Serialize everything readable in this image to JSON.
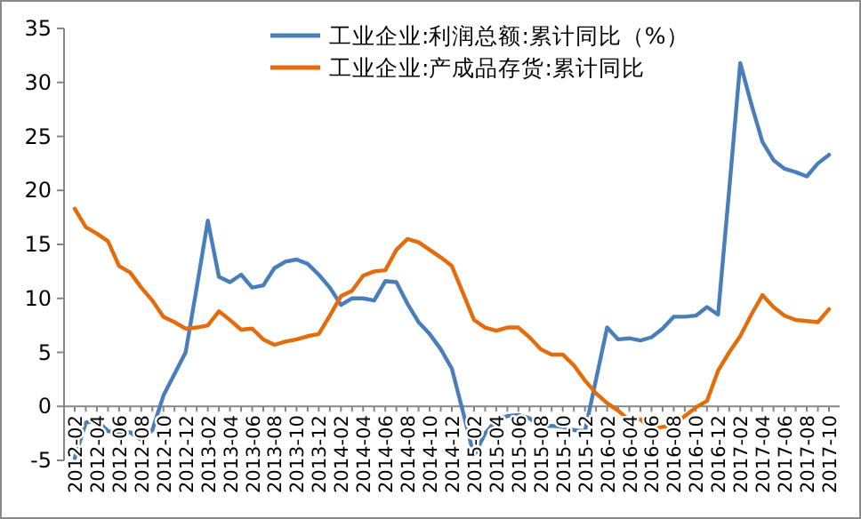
{
  "chart_data": {
    "type": "line",
    "categories": [
      "2012-02",
      null,
      "2012-04",
      null,
      "2012-06",
      null,
      "2012-08",
      null,
      "2012-10",
      null,
      "2012-12",
      null,
      "2013-02",
      null,
      "2013-04",
      null,
      "2013-06",
      null,
      "2013-08",
      null,
      "2013-10",
      null,
      "2013-12",
      null,
      "2014-02",
      null,
      "2014-04",
      null,
      "2014-06",
      null,
      "2014-08",
      null,
      "2014-10",
      null,
      "2014-12",
      null,
      "2015-02",
      null,
      "2015-04",
      null,
      "2015-06",
      null,
      "2015-08",
      null,
      "2015-10",
      null,
      "2015-12",
      null,
      "2016-02",
      null,
      "2016-04",
      null,
      "2016-06",
      null,
      "2016-08",
      null,
      "2016-10",
      null,
      "2016-12",
      null,
      "2017-02",
      null,
      "2017-04",
      null,
      "2017-06",
      null,
      "2017-08",
      null,
      "2017-10"
    ],
    "series": [
      {
        "name": "工业企业:利润总额:累计同比（%）",
        "color": "#4a7ebb",
        "values": [
          -4.8,
          -1.5,
          -1.3,
          -2.3,
          -2.5,
          -2.4,
          -3.1,
          -2.2,
          1,
          3,
          5,
          11,
          17.2,
          12,
          11.5,
          12.2,
          11,
          11.2,
          12.8,
          13.4,
          13.6,
          13.2,
          12.2,
          11,
          9.4,
          10,
          10,
          9.8,
          11.6,
          11.5,
          9.5,
          7.8,
          6.7,
          5.3,
          3.5,
          -0.5,
          -4.6,
          -2.5,
          -1.3,
          -0.9,
          -0.8,
          -1.1,
          -1.9,
          -1.8,
          -1.9,
          -2.2,
          -2.3,
          2.5,
          7.3,
          6.2,
          6.3,
          6.1,
          6.4,
          7.2,
          8.3,
          8.3,
          8.4,
          9.2,
          8.5,
          20,
          31.8,
          28,
          24.5,
          22.8,
          22,
          21.7,
          21.3,
          22.5,
          23.3
        ]
      },
      {
        "name": "工业企业:产成品存货:累计同比",
        "color": "#e46c0a",
        "values": [
          18.3,
          16.6,
          16,
          15.3,
          13,
          12.4,
          11,
          9.8,
          8.3,
          7.8,
          7.2,
          7.3,
          7.5,
          8.8,
          8,
          7.1,
          7.2,
          6.2,
          5.7,
          6,
          6.2,
          6.5,
          6.7,
          8.4,
          10.2,
          10.7,
          12.1,
          12.5,
          12.6,
          14.5,
          15.5,
          15.2,
          14.5,
          13.8,
          13,
          10.5,
          8,
          7.3,
          7,
          7.3,
          7.3,
          6.4,
          5.3,
          4.8,
          4.8,
          3.8,
          2.4,
          1.2,
          0.3,
          -0.4,
          -1.3,
          -1.2,
          -2.1,
          -1.9,
          -1.8,
          -0.9,
          -0.1,
          0.5,
          3.3,
          5,
          6.5,
          8.5,
          10.3,
          9.2,
          8.4,
          8,
          7.9,
          7.8,
          9
        ]
      }
    ],
    "ylim": [
      -5,
      35
    ],
    "yticks": [
      -5,
      0,
      5,
      10,
      15,
      20,
      25,
      30,
      35
    ],
    "legend": "top",
    "grid": false,
    "marker": "none",
    "line_style": "solid"
  }
}
